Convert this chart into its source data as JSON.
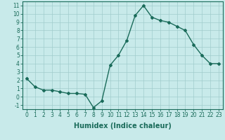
{
  "x": [
    0,
    1,
    2,
    3,
    4,
    5,
    6,
    7,
    8,
    9,
    10,
    11,
    12,
    13,
    14,
    15,
    16,
    17,
    18,
    19,
    20,
    21,
    22,
    23
  ],
  "y": [
    2.2,
    1.2,
    0.8,
    0.8,
    0.6,
    0.4,
    0.4,
    0.3,
    -1.3,
    -0.5,
    3.8,
    5.0,
    6.8,
    9.8,
    11.0,
    9.6,
    9.2,
    9.0,
    8.5,
    8.0,
    6.3,
    5.0,
    4.0,
    4.0
  ],
  "line_color": "#1a6b5a",
  "marker": "D",
  "marker_size": 2.0,
  "bg_color": "#c8eaea",
  "grid_color": "#a0cccc",
  "xlabel": "Humidex (Indice chaleur)",
  "xlim": [
    -0.5,
    23.5
  ],
  "ylim": [
    -1.5,
    11.5
  ],
  "xticks": [
    0,
    1,
    2,
    3,
    4,
    5,
    6,
    7,
    8,
    9,
    10,
    11,
    12,
    13,
    14,
    15,
    16,
    17,
    18,
    19,
    20,
    21,
    22,
    23
  ],
  "yticks": [
    -1,
    0,
    1,
    2,
    3,
    4,
    5,
    6,
    7,
    8,
    9,
    10,
    11
  ],
  "tick_fontsize": 5.5,
  "xlabel_fontsize": 7,
  "linewidth": 1.0
}
